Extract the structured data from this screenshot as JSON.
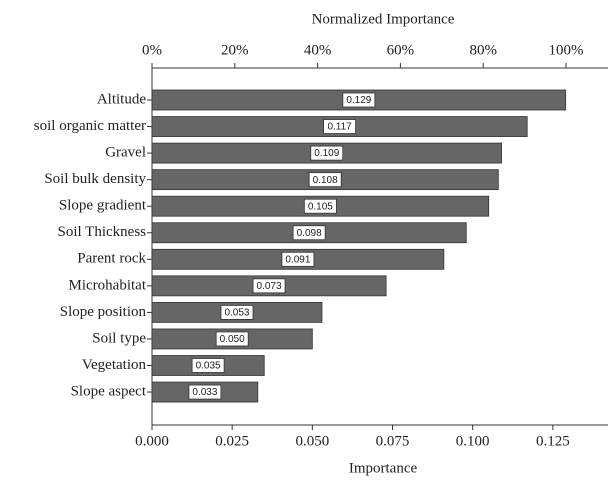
{
  "chart_data": {
    "type": "bar",
    "orientation": "horizontal",
    "xlabel": "Importance",
    "x2label": "Normalized Importance",
    "categories": [
      "Altitude",
      "soil organic matter",
      "Gravel",
      "Soil bulk density",
      "Slope gradient",
      "Soil Thickness",
      "Parent rock",
      "Microhabitat",
      "Slope position",
      "Soil type",
      "Vegetation",
      "Slope aspect"
    ],
    "values": [
      0.129,
      0.117,
      0.109,
      0.108,
      0.105,
      0.098,
      0.091,
      0.073,
      0.053,
      0.05,
      0.035,
      0.033
    ],
    "value_labels": [
      "0.129",
      "0.117",
      "0.109",
      "0.108",
      "0.105",
      "0.098",
      "0.091",
      "0.073",
      "0.053",
      "0.050",
      "0.035",
      "0.033"
    ],
    "color": "#666666",
    "xlim": [
      0,
      0.1422
    ],
    "xticks": [
      {
        "value": 0,
        "label": "0.000"
      },
      {
        "value": 0.025,
        "label": "0.025"
      },
      {
        "value": 0.05,
        "label": "0.050"
      },
      {
        "value": 0.075,
        "label": "0.075"
      },
      {
        "value": 0.1,
        "label": "0.100"
      },
      {
        "value": 0.125,
        "label": "0.125"
      }
    ],
    "x2lim": [
      0,
      110.14
    ],
    "x2ticks": [
      {
        "value": 0,
        "label": "0%"
      },
      {
        "value": 20,
        "label": "20%"
      },
      {
        "value": 40,
        "label": "40%"
      },
      {
        "value": 60,
        "label": "60%"
      },
      {
        "value": 80,
        "label": "80%"
      },
      {
        "value": 100,
        "label": "100%"
      }
    ]
  }
}
